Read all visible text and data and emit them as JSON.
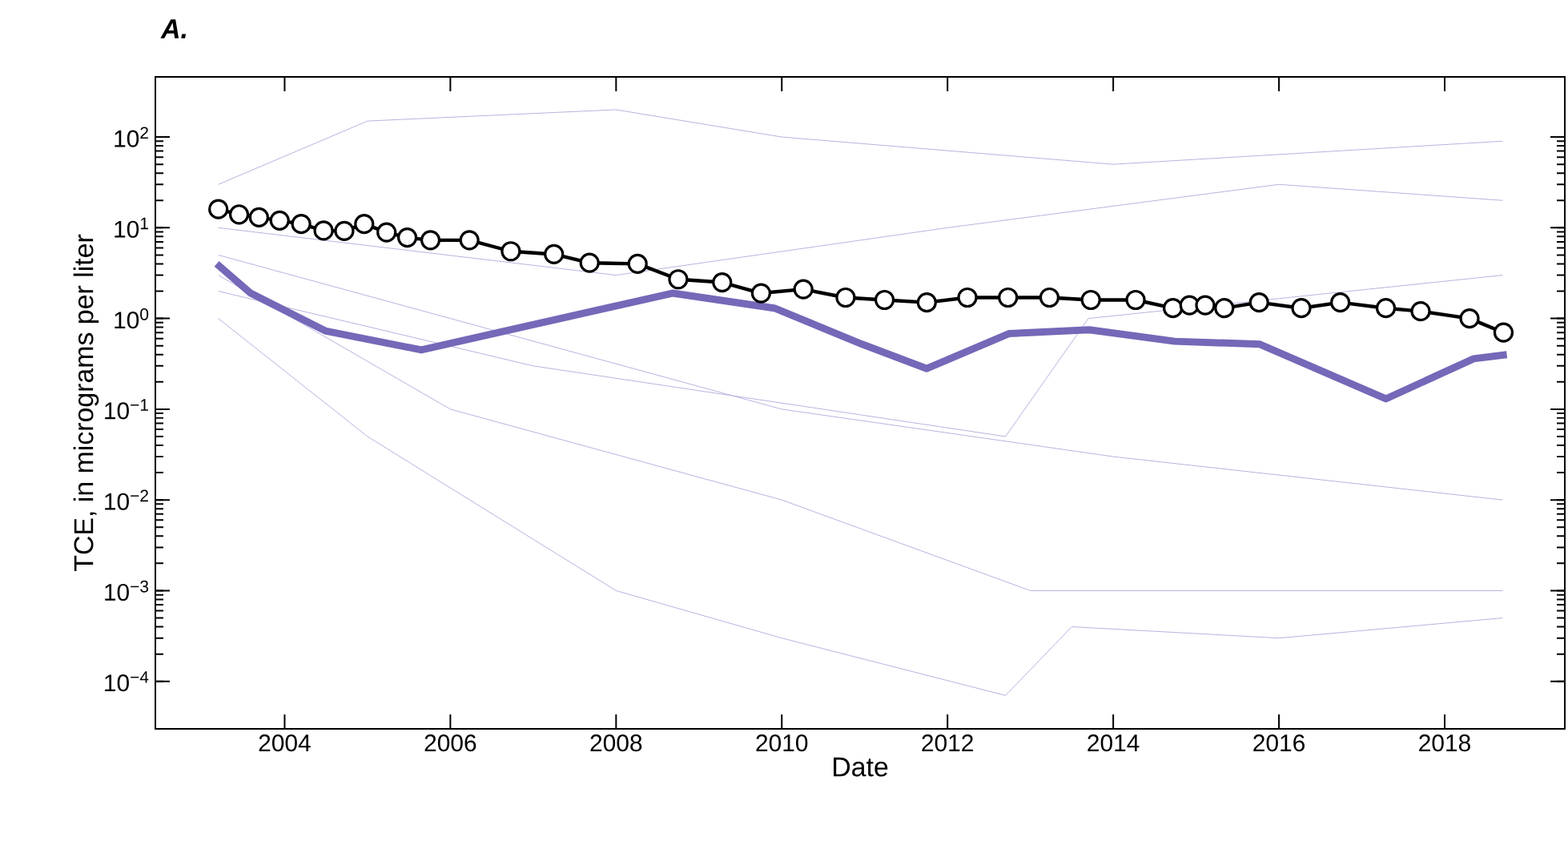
{
  "chart_data": {
    "type": "line",
    "title": "A.",
    "xlabel": "Date",
    "ylabel": "TCE, in micrograms per liter",
    "log": "y",
    "grid": false,
    "xlim": [
      2002.44,
      2019.45
    ],
    "ylim": [
      3e-05,
      460
    ],
    "xticks": [
      2004,
      2006,
      2008,
      2010,
      2012,
      2014,
      2016,
      2018
    ],
    "yticks": [
      {
        "value": 0.0001,
        "label": "10$^{−4}$"
      },
      {
        "value": 0.001,
        "label": "10$^{−3}$"
      },
      {
        "value": 0.01,
        "label": "10$^{−2}$"
      },
      {
        "value": 0.1,
        "label": "10$^{−1}$"
      },
      {
        "value": 1,
        "label": "10$^{0}$"
      },
      {
        "value": 10,
        "label": "10$^{1}$"
      },
      {
        "value": 100,
        "label": "10$^{2}$"
      }
    ],
    "series": [
      {
        "color": "#000000",
        "marker": "circle",
        "x": [
          2003.2,
          2003.45,
          2003.69,
          2003.94,
          2004.2,
          2004.47,
          2004.72,
          2004.96,
          2005.23,
          2005.48,
          2005.76,
          2006.23,
          2006.73,
          2007.25,
          2007.68,
          2008.26,
          2008.75,
          2009.28,
          2009.75,
          2010.26,
          2010.77,
          2011.24,
          2011.75,
          2012.24,
          2012.73,
          2013.23,
          2013.73,
          2014.27,
          2014.72,
          2014.92,
          2015.11,
          2015.34,
          2015.76,
          2016.27,
          2016.74,
          2017.29,
          2017.71,
          2018.3,
          2018.71
        ],
        "values": [
          16,
          14,
          13,
          12,
          11,
          9.3,
          9.2,
          11,
          8.9,
          7.8,
          7.3,
          7.3,
          5.5,
          5.1,
          4.1,
          4.0,
          2.7,
          2.5,
          1.9,
          2.1,
          1.7,
          1.6,
          1.5,
          1.7,
          1.7,
          1.7,
          1.6,
          1.6,
          1.3,
          1.4,
          1.4,
          1.3,
          1.5,
          1.3,
          1.5,
          1.3,
          1.2,
          1.0,
          0.7
        ]
      },
      {
        "color": "#7468b8",
        "marker": "none",
        "x": [
          2003.18,
          2003.59,
          2004.49,
          2005.65,
          2008.68,
          2009.91,
          2010.97,
          2011.75,
          2012.74,
          2013.71,
          2014.74,
          2015.77,
          2017.29,
          2018.35,
          2018.75
        ],
        "values": [
          4.0,
          1.9,
          0.73,
          0.45,
          1.9,
          1.3,
          0.52,
          0.28,
          0.68,
          0.75,
          0.56,
          0.52,
          0.13,
          0.36,
          0.4
        ]
      },
      {
        "color": "#b7b3de",
        "marker": "none",
        "x": [
          2003.2,
          2005,
          2008,
          2010,
          2014,
          2018.7
        ],
        "values": [
          30,
          150,
          200,
          100,
          50,
          90
        ]
      },
      {
        "color": "#b7b3de",
        "marker": "none",
        "x": [
          2003.2,
          2006,
          2010,
          2014,
          2018.7
        ],
        "values": [
          5,
          1,
          0.1,
          0.03,
          0.01
        ]
      },
      {
        "color": "#b7b3de",
        "marker": "none",
        "x": [
          2003.2,
          2008,
          2012,
          2016,
          2018.7
        ],
        "values": [
          10,
          3,
          10,
          30,
          20
        ]
      },
      {
        "color": "#b7b3de",
        "marker": "none",
        "x": [
          2003.2,
          2006,
          2010,
          2013,
          2018.7
        ],
        "values": [
          3,
          0.1,
          0.01,
          0.001,
          0.001
        ]
      },
      {
        "color": "#b7b3de",
        "marker": "none",
        "x": [
          2003.2,
          2007,
          2012.7,
          2013.7,
          2018.7
        ],
        "values": [
          2,
          0.3,
          0.05,
          1,
          3
        ]
      },
      {
        "color": "#b7b3de",
        "marker": "none",
        "x": [
          2003.2,
          2005,
          2008,
          2010,
          2012.7,
          2013.5,
          2016,
          2018.7
        ],
        "values": [
          1,
          0.05,
          0.001,
          0.0003,
          7e-05,
          0.0004,
          0.0003,
          0.0005
        ]
      }
    ]
  }
}
